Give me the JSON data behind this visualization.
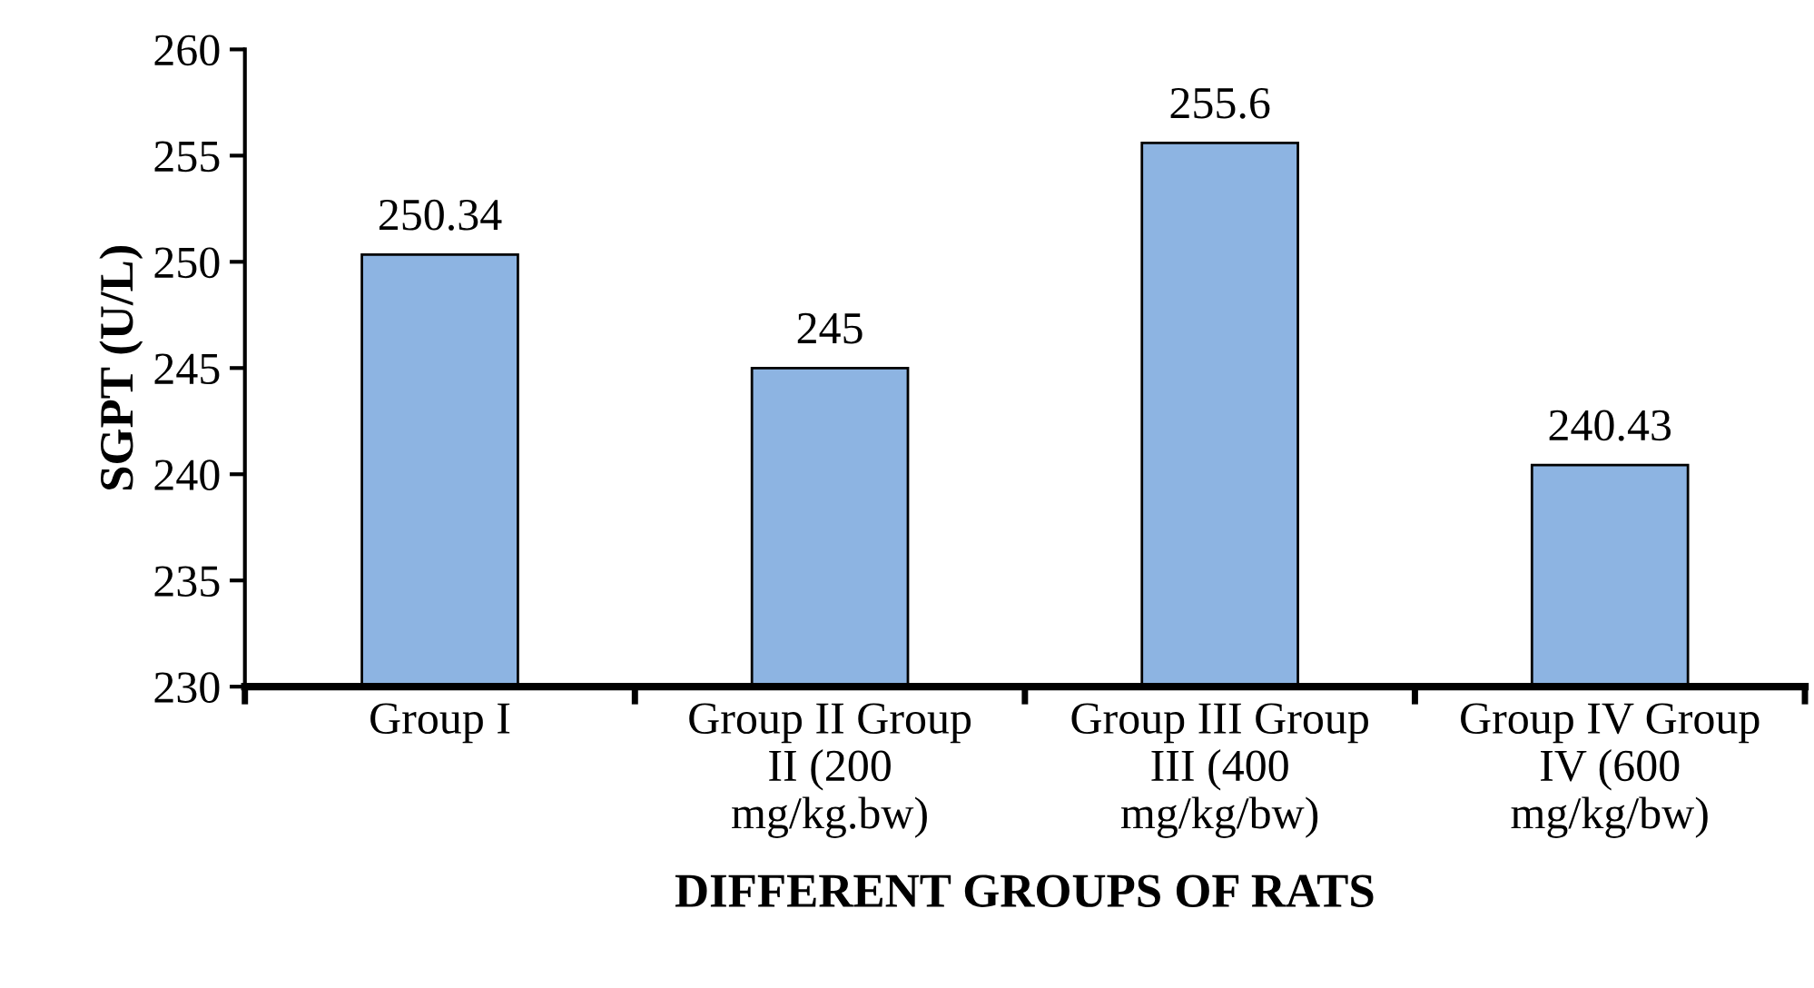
{
  "chart_data": {
    "type": "bar",
    "categories": [
      "Group I",
      "Group II Group\nII (200\nmg/kg.bw)",
      "Group III Group\nIII (400\nmg/kg/bw)",
      "Group IV Group\nIV (600\nmg/kg/bw)"
    ],
    "values": [
      250.34,
      245,
      255.6,
      240.43
    ],
    "color": "#8db4e2",
    "ylim": [
      230,
      260
    ],
    "yticks": [
      230,
      235,
      240,
      245,
      250,
      255,
      260
    ],
    "ylabel": "SGPT (U/L)",
    "xlabel": "DIFFERENT GROUPS OF RATS",
    "data_labels": true,
    "grid": false,
    "legend": false
  }
}
